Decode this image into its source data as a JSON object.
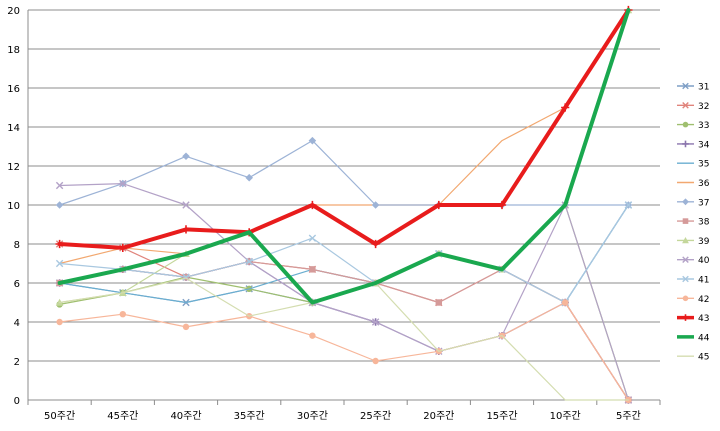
{
  "chart_data": {
    "type": "line",
    "title": "",
    "xlabel": "",
    "ylabel": "",
    "categories": [
      "50주간",
      "45주간",
      "40주간",
      "35주간",
      "30주간",
      "25주간",
      "20주간",
      "15주간",
      "10주간",
      "5주간"
    ],
    "ylim": [
      0,
      20
    ],
    "yticks": [
      0,
      2,
      4,
      6,
      8,
      10,
      12,
      14,
      16,
      18,
      20
    ],
    "grid": "horizontal",
    "legend_position": "right",
    "series": [
      {
        "name": "31",
        "color": "#7f9fc6",
        "marker": "x",
        "width": 1.2,
        "values": [
          6.0,
          5.5,
          5.0,
          5.7,
          5.0,
          6.0,
          7.5,
          6.7,
          5.0,
          10.0
        ]
      },
      {
        "name": "32",
        "color": "#e0847c",
        "marker": "x",
        "width": 1.2,
        "values": [
          8.0,
          7.8,
          6.3,
          7.1,
          6.7,
          6.0,
          5.0,
          6.7,
          5.0,
          0.0
        ]
      },
      {
        "name": "33",
        "color": "#9fbf6f",
        "marker": "circle",
        "width": 1.2,
        "values": [
          4.9,
          5.5,
          6.3,
          5.7,
          5.0,
          6.0,
          7.5,
          6.7,
          10.0,
          0.0
        ]
      },
      {
        "name": "34",
        "color": "#8a75ad",
        "marker": "plus",
        "width": 1.2,
        "values": [
          6.0,
          6.7,
          6.3,
          7.1,
          5.0,
          4.0,
          2.5,
          3.3,
          5.0,
          0.0
        ]
      },
      {
        "name": "35",
        "color": "#6aaed0",
        "marker": "none",
        "width": 1.2,
        "values": [
          6.0,
          5.5,
          5.0,
          5.7,
          6.7,
          6.0,
          7.5,
          6.7,
          5.0,
          10.0
        ]
      },
      {
        "name": "36",
        "color": "#f2a870",
        "marker": "none",
        "width": 1.2,
        "values": [
          7.0,
          7.8,
          7.5,
          8.6,
          10.0,
          10.0,
          10.0,
          13.3,
          15.0,
          20.0
        ]
      },
      {
        "name": "37",
        "color": "#9db3d6",
        "marker": "diamond",
        "width": 1.2,
        "values": [
          10.0,
          11.1,
          12.5,
          11.4,
          13.3,
          10.0,
          10.0,
          10.0,
          10.0,
          10.0
        ]
      },
      {
        "name": "38",
        "color": "#d59a99",
        "marker": "square",
        "width": 1.2,
        "values": [
          6.0,
          6.7,
          6.3,
          7.1,
          6.7,
          6.0,
          5.0,
          6.7,
          5.0,
          0.0
        ]
      },
      {
        "name": "39",
        "color": "#c4d79b",
        "marker": "triangle",
        "width": 1.2,
        "values": [
          5.0,
          5.5,
          7.5,
          8.6,
          5.0,
          6.0,
          7.5,
          6.7,
          10.0,
          20.0
        ]
      },
      {
        "name": "40",
        "color": "#b3a2c7",
        "marker": "x",
        "width": 1.2,
        "values": [
          11.0,
          11.1,
          10.0,
          7.1,
          5.0,
          4.0,
          2.5,
          3.3,
          10.0,
          0.0
        ]
      },
      {
        "name": "41",
        "color": "#a9c8e0",
        "marker": "x",
        "width": 1.2,
        "values": [
          7.0,
          6.7,
          6.3,
          7.1,
          8.3,
          6.0,
          7.5,
          6.7,
          5.0,
          10.0
        ]
      },
      {
        "name": "42",
        "color": "#f7b69a",
        "marker": "circle",
        "width": 1.2,
        "values": [
          4.0,
          4.4,
          3.75,
          4.3,
          3.3,
          2.0,
          2.5,
          3.3,
          5.0,
          0.0
        ]
      },
      {
        "name": "43",
        "color": "#e81c1c",
        "marker": "plus",
        "width": 4.0,
        "values": [
          8.0,
          7.8,
          8.75,
          8.6,
          10.0,
          8.0,
          10.0,
          10.0,
          15.0,
          20.0
        ]
      },
      {
        "name": "44",
        "color": "#1aa84f",
        "marker": "none",
        "width": 4.0,
        "values": [
          6.0,
          6.7,
          7.5,
          8.6,
          5.0,
          6.0,
          7.5,
          6.7,
          10.0,
          20.0
        ]
      },
      {
        "name": "45",
        "color": "#d4ddb0",
        "marker": "none",
        "width": 1.2,
        "values": [
          5.0,
          5.5,
          6.25,
          4.3,
          5.0,
          6.0,
          2.5,
          3.3,
          0.0,
          0.0
        ]
      }
    ]
  }
}
